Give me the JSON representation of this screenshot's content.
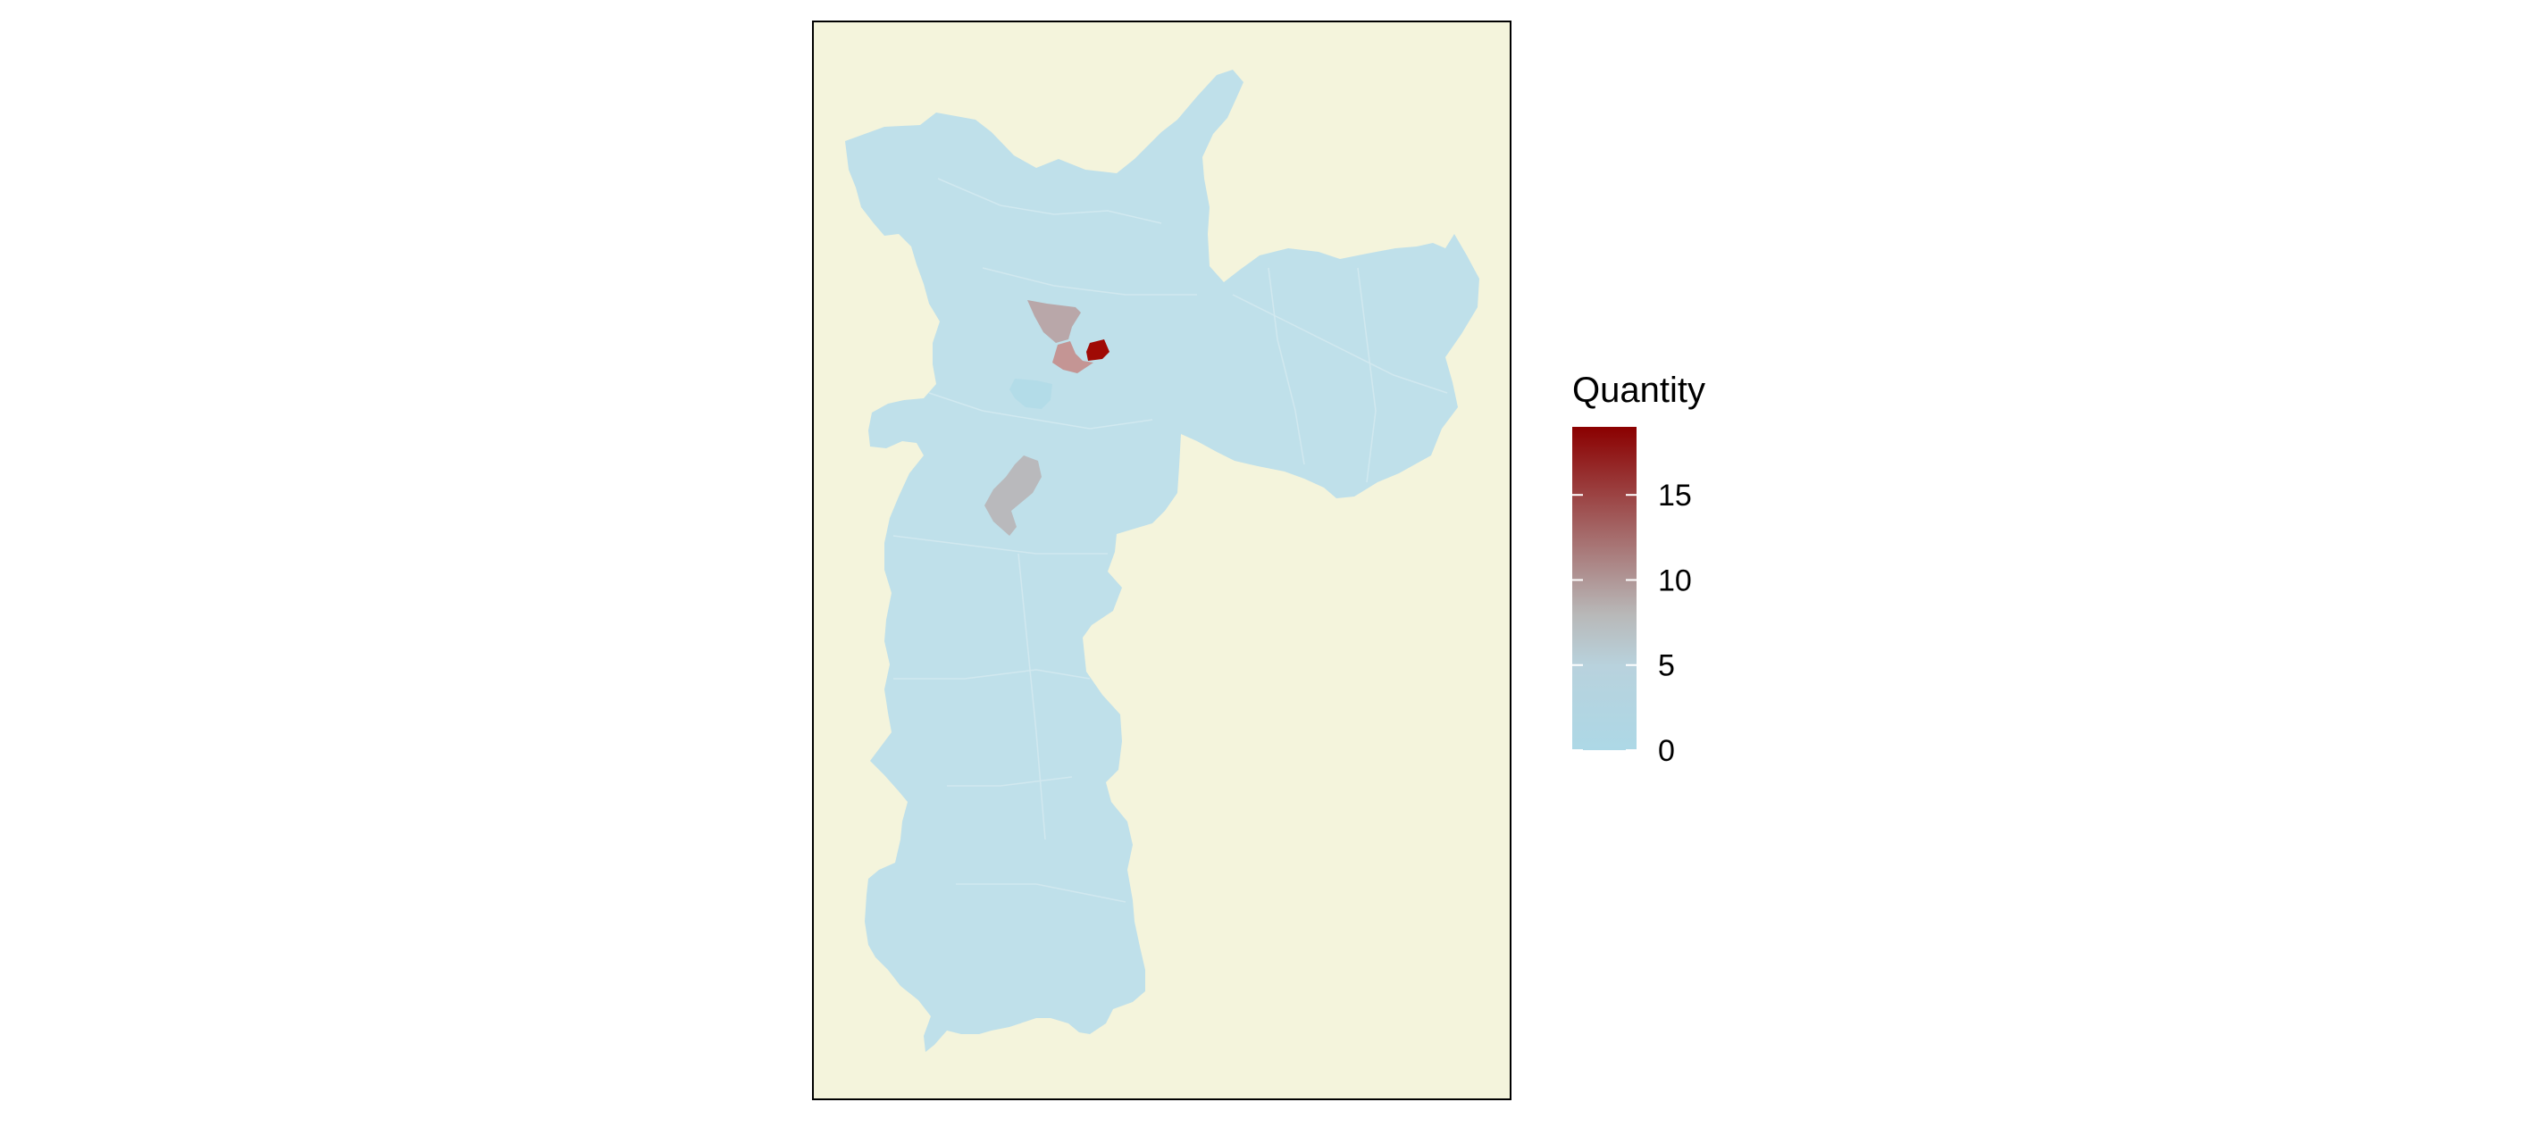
{
  "map": {
    "panel_background": "#f4f4dc",
    "panel_border": "#000000",
    "base_fill": "#bfe0ea",
    "highlight_regions": [
      {
        "value": 19,
        "color": "#a00a05"
      },
      {
        "value": 9,
        "color": "#b9a7a9"
      },
      {
        "value": 10,
        "color": "#c49594"
      },
      {
        "value": 6,
        "color": "#b9b9bc"
      },
      {
        "value": 3,
        "color": "#b3dce8"
      }
    ]
  },
  "legend": {
    "title": "Quantity",
    "min": 0,
    "max": 19,
    "breaks": [
      0,
      5,
      10,
      15
    ],
    "break_labels": [
      "0",
      "5",
      "10",
      "15"
    ],
    "colors": {
      "low": "#add8e6",
      "mid": "#b8b8b8",
      "high": "#8b0000"
    }
  }
}
